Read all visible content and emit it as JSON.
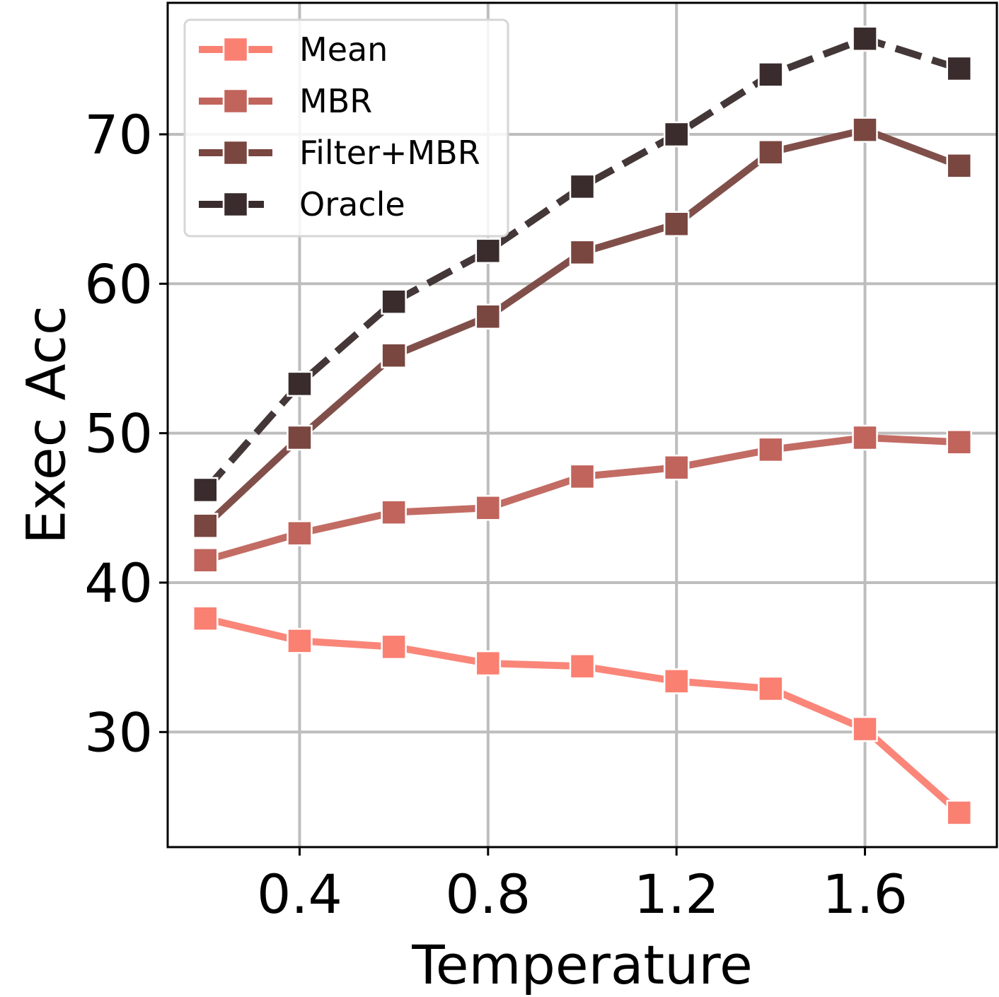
{
  "chart_data": {
    "type": "line",
    "title": "",
    "xlabel": "Temperature",
    "ylabel": "Exec Acc",
    "x": [
      0.2,
      0.4,
      0.6,
      0.8,
      1.0,
      1.2,
      1.4,
      1.6,
      1.8
    ],
    "xlim": [
      0.12,
      1.88
    ],
    "ylim": [
      22.3,
      78.8
    ],
    "xticks": [
      0.4,
      0.8,
      1.2,
      1.6
    ],
    "xtick_labels": [
      "0.4",
      "0.8",
      "1.2",
      "1.6"
    ],
    "yticks": [
      30,
      40,
      50,
      60,
      70
    ],
    "ytick_labels": [
      "30",
      "40",
      "50",
      "60",
      "70"
    ],
    "grid": true,
    "legend_position": "top-left",
    "series": [
      {
        "name": "Mean",
        "values": [
          37.6,
          36.1,
          35.7,
          34.6,
          34.4,
          33.4,
          32.9,
          30.2,
          24.6
        ],
        "color": "#fa8072",
        "dash": "solid"
      },
      {
        "name": "MBR",
        "values": [
          41.5,
          43.3,
          44.7,
          45.0,
          47.1,
          47.7,
          48.9,
          49.7,
          49.4
        ],
        "color": "#c0645c",
        "dash": "solid"
      },
      {
        "name": "Filter+MBR",
        "values": [
          43.8,
          49.7,
          55.2,
          57.8,
          62.1,
          64.0,
          68.8,
          70.3,
          67.9
        ],
        "color": "#7a4640",
        "dash": "solid"
      },
      {
        "name": "Oracle",
        "values": [
          46.2,
          53.3,
          58.8,
          62.2,
          66.5,
          70.0,
          74.0,
          76.4,
          74.4
        ],
        "color": "#3a2c2c",
        "dash": "dashed"
      }
    ]
  }
}
